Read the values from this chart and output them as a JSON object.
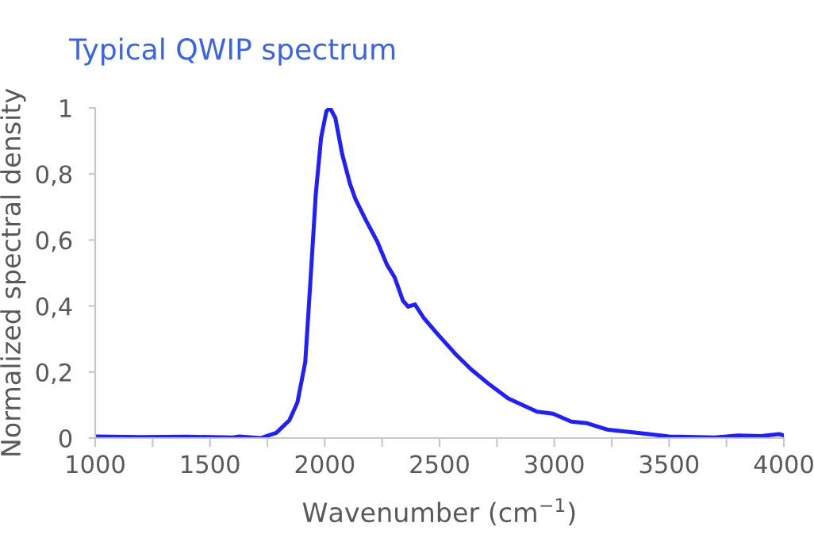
{
  "chart_data": {
    "type": "line",
    "title": "Typical QWIP spectrum",
    "xlabel": "Wavenumber (cm$^{−1}$)",
    "ylabel": "Normalized spectral density",
    "series": [
      {
        "color": "#1f1fff",
        "x": [
          1000,
          1200,
          1400,
          1600,
          1628,
          1720,
          1789,
          1846,
          1881,
          1915,
          1938,
          1961,
          1984,
          2007,
          2023,
          2046,
          2076,
          2110,
          2133,
          2179,
          2229,
          2271,
          2305,
          2340,
          2363,
          2393,
          2432,
          2489,
          2569,
          2638,
          2718,
          2799,
          2925,
          2994,
          3074,
          3143,
          3235,
          3350,
          3500,
          3700,
          3800,
          3900,
          3980,
          4000
        ],
        "values": [
          0.005,
          0.003,
          0.004,
          0.002,
          0.005,
          0.0,
          0.016,
          0.054,
          0.108,
          0.23,
          0.48,
          0.74,
          0.91,
          0.99,
          1.0,
          0.97,
          0.86,
          0.77,
          0.725,
          0.66,
          0.595,
          0.525,
          0.486,
          0.417,
          0.398,
          0.405,
          0.363,
          0.317,
          0.255,
          0.208,
          0.162,
          0.12,
          0.08,
          0.074,
          0.05,
          0.045,
          0.025,
          0.017,
          0.005,
          0.002,
          0.008,
          0.006,
          0.012,
          0.008
        ]
      }
    ],
    "xlim": [
      1000,
      4000
    ],
    "ylim": [
      0,
      1
    ],
    "xticks": [
      1000,
      {
        "value": 1250,
        "label": null
      },
      1500,
      {
        "value": 1750,
        "label": null
      },
      2000,
      {
        "value": 2250,
        "label": null
      },
      2500,
      {
        "value": 2750,
        "label": null
      },
      3000,
      {
        "value": 3250,
        "label": null
      },
      3500,
      {
        "value": 3750,
        "label": null
      },
      4000
    ],
    "yticks": [
      0,
      {
        "value": 0.2,
        "label": "0,2"
      },
      {
        "value": 0.4,
        "label": "0,4"
      },
      {
        "value": 0.6,
        "label": "0,6"
      },
      {
        "value": 0.8,
        "label": "0,8"
      },
      1
    ],
    "grid": false,
    "marker": "none",
    "line_style": "solid"
  }
}
